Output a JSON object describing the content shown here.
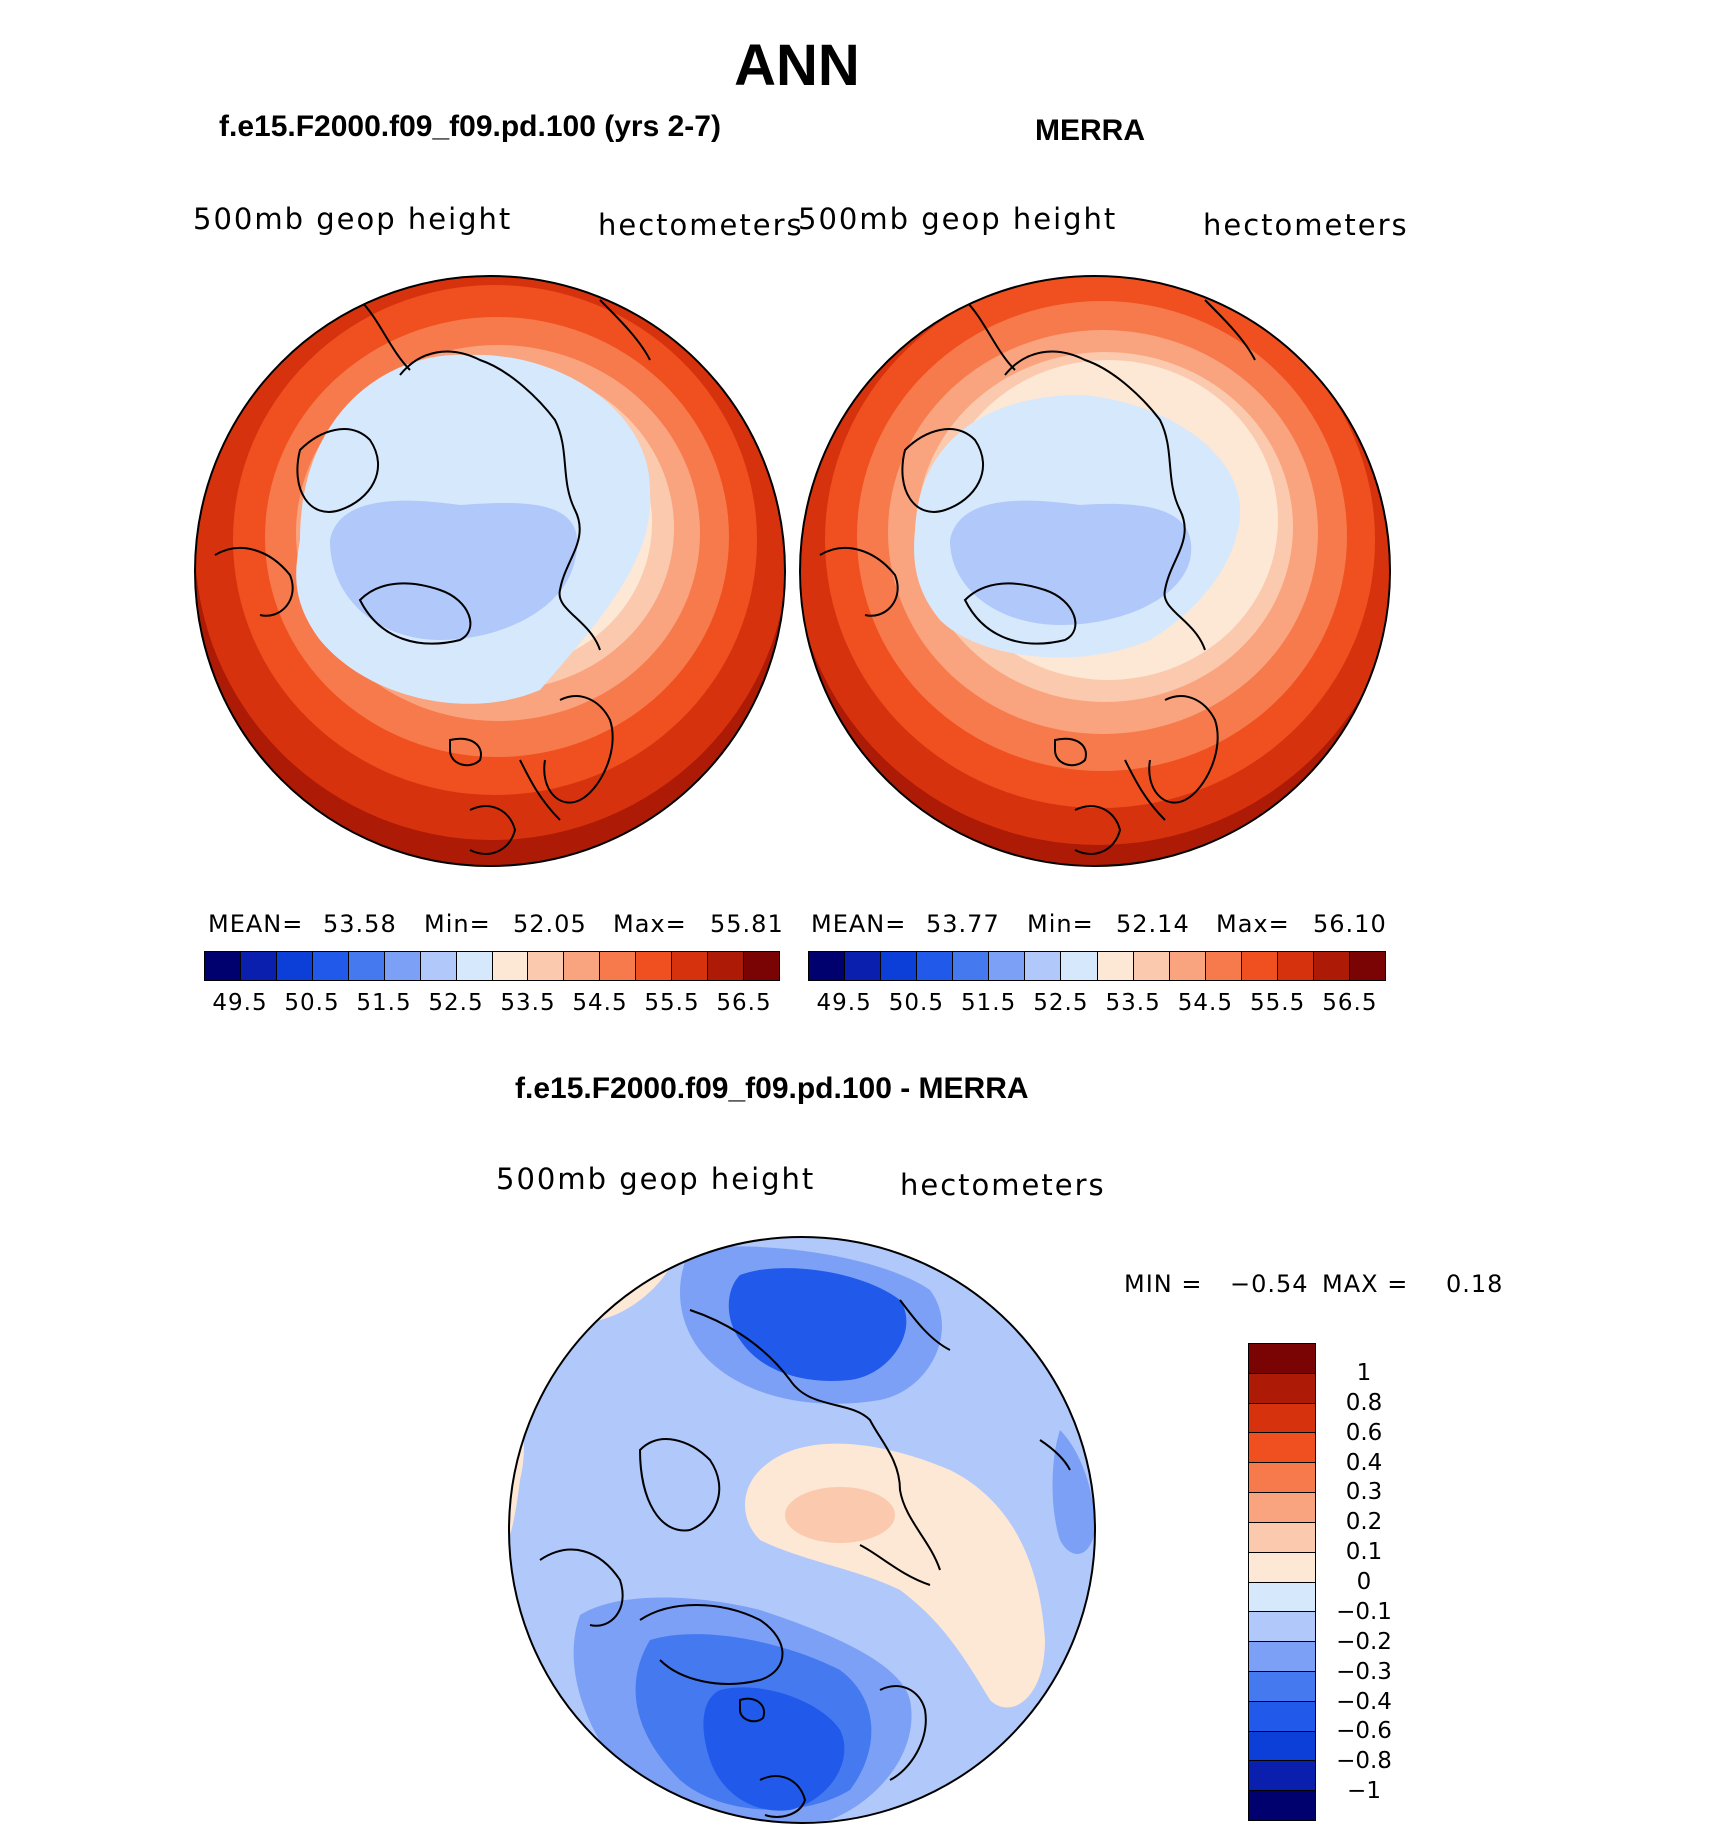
{
  "main_title": "ANN",
  "panels": [
    {
      "title": "f.e15.F2000.f09_f09.pd.100 (yrs 2-7)",
      "left_label": "500mb geop height",
      "right_label": "hectometers",
      "stats": {
        "mean_label": "MEAN=",
        "mean": "53.58",
        "min_label": "Min=",
        "min": "52.05",
        "max_label": "Max=",
        "max": "55.81"
      },
      "colorbar_ticks": [
        "49.5",
        "50.5",
        "51.5",
        "52.5",
        "53.5",
        "54.5",
        "55.5",
        "56.5"
      ]
    },
    {
      "title": "MERRA",
      "left_label": "500mb geop height",
      "right_label": "hectometers",
      "stats": {
        "mean_label": "MEAN=",
        "mean": "53.77",
        "min_label": "Min=",
        "min": "52.14",
        "max_label": "Max=",
        "max": "56.10"
      },
      "colorbar_ticks": [
        "49.5",
        "50.5",
        "51.5",
        "52.5",
        "53.5",
        "54.5",
        "55.5",
        "56.5"
      ]
    }
  ],
  "diff_panel": {
    "title": "f.e15.F2000.f09_f09.pd.100 - MERRA",
    "left_label": "500mb geop height",
    "right_label": "hectometers",
    "min_label": "MIN =",
    "min": "−0.54",
    "max_label": "MAX =",
    "max": "0.18",
    "colorbar_ticks": [
      "1",
      "0.8",
      "0.6",
      "0.4",
      "0.3",
      "0.2",
      "0.1",
      "0",
      "−0.1",
      "−0.2",
      "−0.3",
      "−0.4",
      "−0.6",
      "−0.8",
      "−1"
    ]
  },
  "palette_16": [
    "#00006e",
    "#0a1fae",
    "#0b3fd8",
    "#2159ea",
    "#4479f0",
    "#7ca0f5",
    "#b0c8fa",
    "#d6e8fc",
    "#fde7d5",
    "#fbc9ad",
    "#f9a47e",
    "#f77a4c",
    "#f0501f",
    "#d7320e",
    "#ad1a05",
    "#7a0404"
  ]
}
